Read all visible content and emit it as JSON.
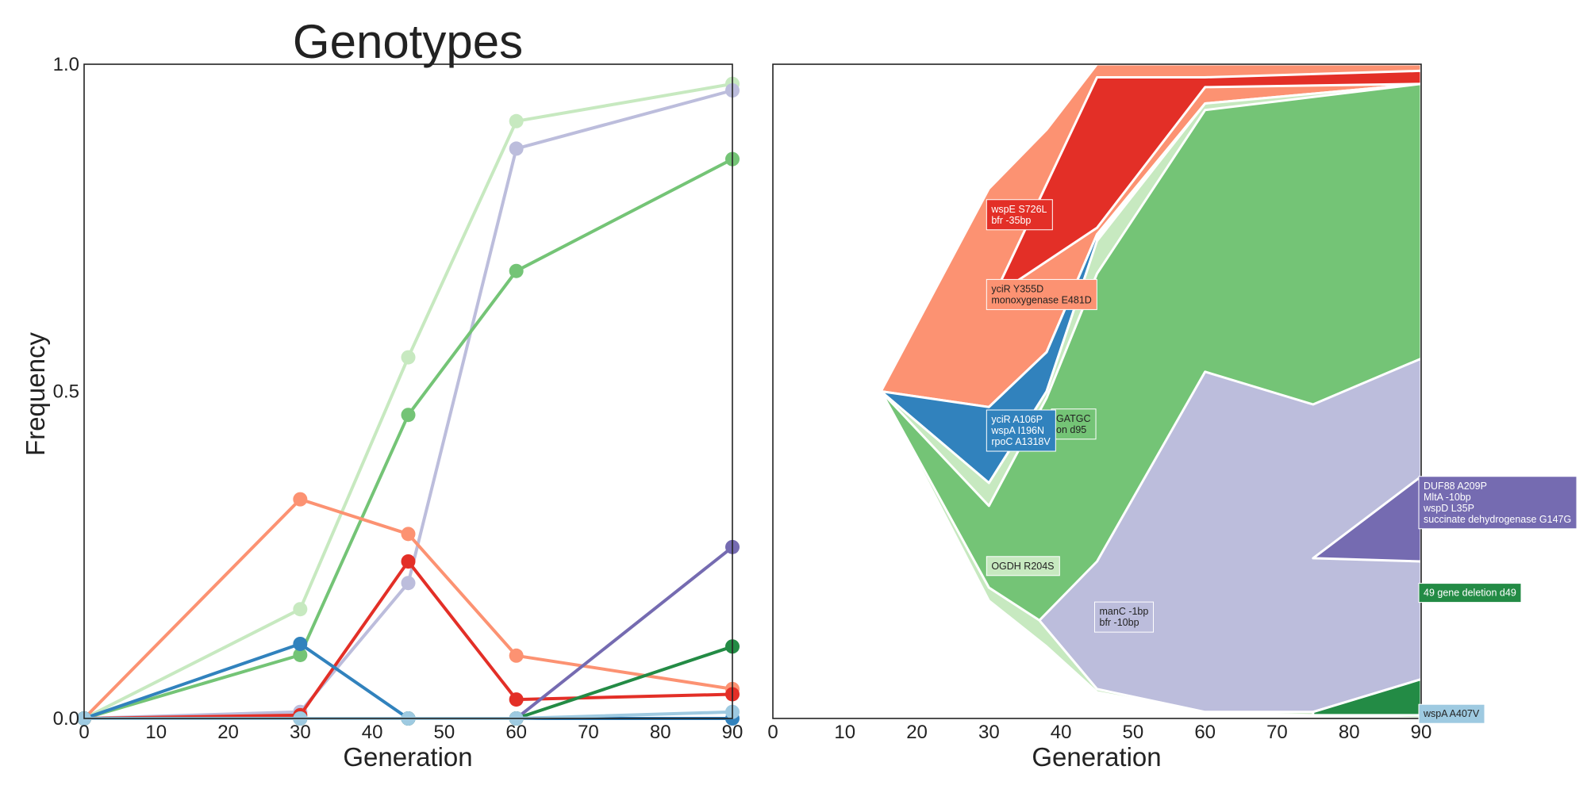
{
  "title": "Genotypes",
  "left_panel": {
    "xlabel": "Generation",
    "ylabel": "Frequency"
  },
  "right_panel": {
    "xlabel": "Generation"
  },
  "chart_data": [
    {
      "type": "line",
      "panel": "left",
      "title": "Genotypes",
      "xlabel": "Generation",
      "ylabel": "Frequency",
      "xlim": [
        0,
        90
      ],
      "ylim": [
        0,
        1
      ],
      "xticks": [
        0,
        10,
        20,
        30,
        40,
        50,
        60,
        70,
        80,
        90
      ],
      "yticks": [
        0,
        0.5,
        1
      ],
      "ytick_labels": [
        "0.0",
        "0.5",
        "1.0"
      ],
      "grid": false,
      "x": [
        0,
        30,
        45,
        60,
        90
      ],
      "series": [
        {
          "color": "#c7e9c0",
          "values": [
            0,
            0.167,
            0.552,
            0.913,
            0.97
          ]
        },
        {
          "color": "#bcbddc",
          "values": [
            0,
            0.01,
            0.207,
            0.871,
            0.96
          ]
        },
        {
          "color": "#74c476",
          "values": [
            0,
            0.097,
            0.464,
            0.684,
            0.855
          ]
        },
        {
          "color": "#fc9272",
          "values": [
            0,
            0.335,
            0.282,
            0.096,
            0.045
          ]
        },
        {
          "color": "#e32f27",
          "values": [
            0,
            0.005,
            0.24,
            0.029,
            0.037
          ]
        },
        {
          "color": "#3182bd",
          "values": [
            0,
            0.114,
            0,
            0,
            0
          ]
        },
        {
          "color": "#756bb1",
          "values": [
            0,
            0,
            0,
            0,
            0.262
          ]
        },
        {
          "color": "#238b45",
          "values": [
            0,
            0,
            0,
            0,
            0.11
          ]
        },
        {
          "color": "#9ecae1",
          "values": [
            0,
            0,
            0,
            0,
            0.01
          ]
        }
      ]
    },
    {
      "type": "area",
      "panel": "right",
      "xlabel": "Generation",
      "xlim": [
        0,
        90
      ],
      "ylim": [
        0,
        1
      ],
      "xticks": [
        0,
        10,
        20,
        30,
        40,
        50,
        60,
        70,
        80,
        90
      ],
      "grid": false,
      "regions": [
        {
          "color": "#fc9272",
          "top": [
            [
              15,
              0.5
            ],
            [
              30,
              0.81
            ],
            [
              38,
              0.9
            ],
            [
              45,
              1
            ],
            [
              90,
              1
            ]
          ],
          "bottom": [
            [
              15,
              0.5
            ],
            [
              30,
              0.476
            ],
            [
              38,
              0.56
            ],
            [
              45,
              0.74
            ],
            [
              60,
              0.94
            ],
            [
              90,
              0.97
            ]
          ]
        },
        {
          "color": "#e32f27",
          "top": [
            [
              30,
              0.63
            ],
            [
              45,
              0.98
            ],
            [
              60,
              0.98
            ],
            [
              90,
              0.99
            ]
          ],
          "bottom": [
            [
              30,
              0.64
            ],
            [
              45,
              0.75
            ],
            [
              60,
              0.965
            ],
            [
              90,
              0.97
            ]
          ]
        },
        {
          "color": "#3182bd",
          "top": [
            [
              15,
              0.5
            ],
            [
              30,
              0.476
            ],
            [
              38,
              0.56
            ],
            [
              45,
              0.74
            ]
          ],
          "bottom": [
            [
              15,
              0.5
            ],
            [
              30,
              0.36
            ],
            [
              38,
              0.5
            ],
            [
              45,
              0.73
            ]
          ]
        },
        {
          "color": "#c7e9c0",
          "top": [
            [
              15,
              0.5
            ],
            [
              30,
              0.36
            ],
            [
              38,
              0.5
            ],
            [
              45,
              0.73
            ],
            [
              60,
              0.94
            ],
            [
              90,
              0.97
            ]
          ],
          "bottom": [
            [
              15,
              0.5
            ],
            [
              30,
              0.18
            ],
            [
              38,
              0.11
            ],
            [
              45,
              0.04
            ],
            [
              60,
              0.01
            ],
            [
              90,
              0
            ]
          ]
        },
        {
          "color": "#74c476",
          "top": [
            [
              15,
              0.5
            ],
            [
              30,
              0.325
            ],
            [
              38,
              0.49
            ],
            [
              45,
              0.68
            ],
            [
              60,
              0.93
            ],
            [
              75,
              0.95
            ],
            [
              90,
              0.97
            ]
          ],
          "bottom": [
            [
              15,
              0.5
            ],
            [
              30,
              0.2
            ],
            [
              37,
              0.15
            ],
            [
              45,
              0.16
            ],
            [
              60,
              0.41
            ],
            [
              75,
              0.45
            ],
            [
              90,
              0.39
            ]
          ]
        },
        {
          "color": "#bcbddc",
          "top": [
            [
              37,
              0.15
            ],
            [
              45,
              0.24
            ],
            [
              60,
              0.53
            ],
            [
              75,
              0.48
            ],
            [
              90,
              0.55
            ]
          ],
          "bottom": [
            [
              37,
              0.15
            ],
            [
              45,
              0.045
            ],
            [
              60,
              0.01
            ],
            [
              75,
              0.01
            ],
            [
              90,
              0.06
            ]
          ]
        },
        {
          "color": "#756bb1",
          "top": [
            [
              75,
              0.245
            ],
            [
              90,
              0.37
            ]
          ],
          "bottom": [
            [
              75,
              0.245
            ],
            [
              90,
              0.24
            ]
          ]
        },
        {
          "color": "#238b45",
          "top": [
            [
              75,
              0.01
            ],
            [
              90,
              0.06
            ]
          ],
          "bottom": [
            [
              75,
              0.005
            ],
            [
              90,
              0.005
            ]
          ]
        }
      ],
      "annotations": [
        {
          "lines": [
            "wspE S726L",
            "bfr -35bp"
          ],
          "x": 30,
          "y": 0.77,
          "fill": "#e32f27",
          "text_color": "#ffffff"
        },
        {
          "lines": [
            "yciR Y355D",
            "monoxygenase E481D"
          ],
          "x": 30,
          "y": 0.648,
          "fill": "#fc9272",
          "text_color": "#222222"
        },
        {
          "lines": [
            "GATGC",
            "on d95"
          ],
          "x": 39,
          "y": 0.45,
          "fill": "#74c476",
          "text_color": "#222222"
        },
        {
          "lines": [
            "yciR A106P",
            "wspA I196N",
            "rpoC A1318V"
          ],
          "x": 30,
          "y": 0.44,
          "fill": "#3182bd",
          "text_color": "#ffffff"
        },
        {
          "lines": [
            "OGDH R204S"
          ],
          "x": 30,
          "y": 0.233,
          "fill": "#c7e9c0",
          "text_color": "#222222"
        },
        {
          "lines": [
            "manC -1bp",
            "bfr -10bp"
          ],
          "x": 45,
          "y": 0.155,
          "fill": "#bcbddc",
          "text_color": "#222222"
        },
        {
          "lines": [
            "DUF88 A209P",
            "MltA -10bp",
            "wspD L35P",
            "succinate dehydrogenase G147G"
          ],
          "x": 90,
          "y": 0.33,
          "fill": "#756bb1",
          "text_color": "#ffffff"
        },
        {
          "lines": [
            "49 gene deletion d49"
          ],
          "x": 90,
          "y": 0.192,
          "fill": "#238b45",
          "text_color": "#ffffff"
        },
        {
          "lines": [
            "wspA A407V"
          ],
          "x": 90,
          "y": 0.007,
          "fill": "#9ecae1",
          "text_color": "#222222"
        }
      ]
    }
  ]
}
